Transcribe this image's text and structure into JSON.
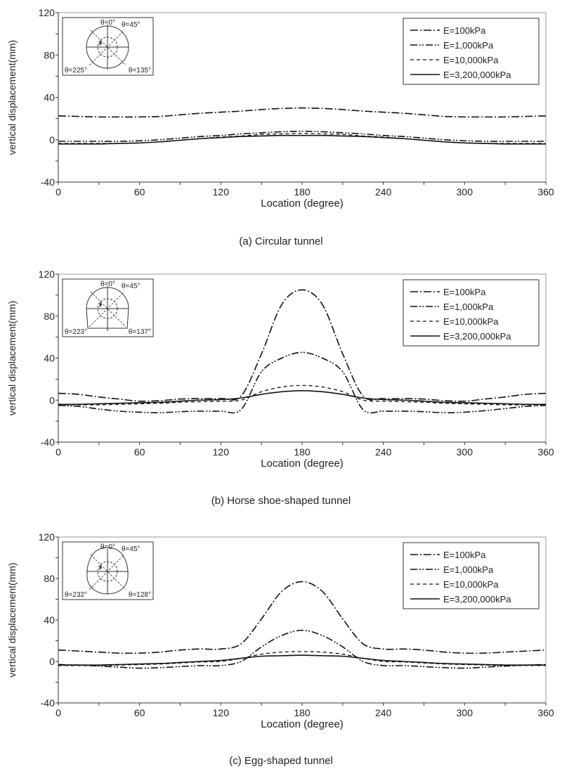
{
  "chart_data": [
    {
      "type": "line",
      "caption": "(a) Circular tunnel",
      "xlabel": "Location (degree)",
      "ylabel": "vertical displacement(mm)",
      "xlim": [
        0,
        360
      ],
      "ylim": [
        -40,
        120
      ],
      "xticks": [
        "0",
        "60",
        "120",
        "180",
        "240",
        "300",
        "360"
      ],
      "yticks": [
        "120",
        "80",
        "40",
        "0",
        "-40"
      ],
      "grid": false,
      "legend_position": "top-right",
      "inset": {
        "shape": "circle",
        "labels": [
          "θ=0°",
          "θ=45°",
          "θ=225°",
          "θ=135°"
        ]
      },
      "x": [
        0,
        15,
        30,
        45,
        60,
        75,
        90,
        105,
        120,
        135,
        150,
        165,
        180,
        195,
        210,
        225,
        240,
        255,
        270,
        285,
        300,
        315,
        330,
        345,
        360
      ],
      "series": [
        {
          "name": "E=100kPa",
          "style": "dash-dot",
          "values": [
            22.5,
            22,
            21.5,
            21.5,
            21.5,
            22,
            23.5,
            25,
            26,
            27,
            28.5,
            29.5,
            30,
            29.5,
            28.5,
            27,
            26,
            25,
            23.5,
            22,
            21.5,
            21.5,
            21.5,
            22,
            22.5
          ]
        },
        {
          "name": "E=1,000kPa",
          "style": "dash-dot-dot",
          "values": [
            -1.5,
            -1.5,
            -1.5,
            -1.5,
            -1,
            0,
            1.5,
            3,
            4,
            5.5,
            6.5,
            7.5,
            8,
            7.5,
            6.5,
            5.5,
            4,
            3,
            1.5,
            0,
            -1,
            -1.5,
            -1.5,
            -1.5,
            -1.5
          ]
        },
        {
          "name": "E=10,000kPa",
          "style": "dashed",
          "values": [
            -3.5,
            -3.5,
            -3.5,
            -3.5,
            -3,
            -2,
            -0.5,
            1,
            2.5,
            3.5,
            5,
            5.5,
            6,
            5.5,
            5,
            3.5,
            2.5,
            1,
            -0.5,
            -2,
            -3,
            -3.5,
            -3.5,
            -3.5,
            -3.5
          ]
        },
        {
          "name": "E=3,200,000kPa",
          "style": "solid",
          "values": [
            -4,
            -4,
            -4,
            -3.5,
            -3,
            -2,
            -0.5,
            1,
            2,
            3,
            3.5,
            4,
            4,
            4,
            3.5,
            3,
            2,
            1,
            -0.5,
            -2,
            -3,
            -3.5,
            -4,
            -4,
            -4
          ]
        }
      ]
    },
    {
      "type": "line",
      "caption": "(b) Horse shoe-shaped tunnel",
      "xlabel": "Location (degree)",
      "ylabel": "vertical displacement(mm)",
      "xlim": [
        0,
        360
      ],
      "ylim": [
        -40,
        120
      ],
      "xticks": [
        "0",
        "60",
        "120",
        "180",
        "240",
        "300",
        "360"
      ],
      "yticks": [
        "120",
        "80",
        "40",
        "0",
        "-40"
      ],
      "grid": false,
      "legend_position": "top-right",
      "inset": {
        "shape": "horseshoe",
        "labels": [
          "θ=0°",
          "θ=45°",
          "θ=223°",
          "θ=137°"
        ]
      },
      "x": [
        0,
        15,
        30,
        45,
        60,
        75,
        90,
        105,
        120,
        135,
        150,
        165,
        180,
        195,
        210,
        225,
        240,
        255,
        270,
        285,
        300,
        315,
        330,
        345,
        360
      ],
      "series": [
        {
          "name": "E=100kPa",
          "style": "dash-dot",
          "values": [
            6.5,
            5.5,
            3,
            1,
            -1,
            -0.5,
            1,
            1.5,
            1.5,
            4,
            44,
            91,
            105,
            91,
            44,
            4,
            1.5,
            1.5,
            1,
            -0.5,
            -1,
            1,
            3,
            5.5,
            6.5
          ]
        },
        {
          "name": "E=1,000kPa",
          "style": "dash-dot-dot",
          "values": [
            -5,
            -6,
            -8.5,
            -10.5,
            -11.5,
            -12,
            -11,
            -10.5,
            -10.5,
            -9,
            27,
            40,
            45.5,
            40,
            27,
            -9,
            -10.5,
            -10.5,
            -11,
            -12,
            -11.5,
            -10,
            -8,
            -6,
            -5
          ]
        },
        {
          "name": "E=10,000kPa",
          "style": "dashed",
          "values": [
            -4.5,
            -4.5,
            -4.5,
            -4,
            -3.5,
            -3,
            -2,
            -1.5,
            -1,
            0,
            8,
            12.5,
            14,
            12.5,
            8,
            0,
            -1,
            -1.5,
            -2,
            -3,
            -3.5,
            -4,
            -4.5,
            -4.5,
            -4.5
          ]
        },
        {
          "name": "E=3,200,000kPa",
          "style": "solid",
          "values": [
            -4,
            -4,
            -3.5,
            -3,
            -2.5,
            -2,
            -1,
            0,
            0.5,
            2,
            5.5,
            8,
            9,
            8,
            5.5,
            2,
            0.5,
            0,
            -1,
            -2,
            -2.5,
            -3,
            -3.5,
            -4,
            -4
          ]
        }
      ]
    },
    {
      "type": "line",
      "caption": "(c) Egg-shaped tunnel",
      "xlabel": "Location (degree)",
      "ylabel": "vertical displacement(mm)",
      "xlim": [
        0,
        360
      ],
      "ylim": [
        -40,
        120
      ],
      "xticks": [
        "0",
        "60",
        "120",
        "180",
        "240",
        "300",
        "360"
      ],
      "yticks": [
        "120",
        "80",
        "40",
        "0",
        "-40"
      ],
      "grid": false,
      "legend_position": "top-right",
      "inset": {
        "shape": "egg",
        "labels": [
          "θ=0°",
          "θ=45°",
          "θ=232°",
          "θ=128°"
        ]
      },
      "x": [
        0,
        15,
        30,
        45,
        60,
        75,
        90,
        105,
        120,
        135,
        150,
        165,
        180,
        195,
        210,
        225,
        240,
        255,
        270,
        285,
        300,
        315,
        330,
        345,
        360
      ],
      "series": [
        {
          "name": "E=100kPa",
          "style": "dash-dot",
          "values": [
            11,
            10,
            9,
            8,
            8,
            9,
            11,
            12,
            12,
            17,
            41,
            67.5,
            77,
            67.5,
            41,
            17,
            12,
            12,
            11,
            9,
            8,
            8,
            9,
            10,
            11
          ]
        },
        {
          "name": "E=1,000kPa",
          "style": "dash-dot-dot",
          "values": [
            -3,
            -3.5,
            -4.5,
            -5.5,
            -6.5,
            -6,
            -5,
            -4,
            -4,
            0,
            14,
            25,
            30,
            25,
            14,
            0,
            -4,
            -4,
            -5,
            -6,
            -6.5,
            -5.5,
            -4.5,
            -3.5,
            -3
          ]
        },
        {
          "name": "E=10,000kPa",
          "style": "dashed",
          "values": [
            -4,
            -4,
            -4,
            -3.5,
            -3,
            -2.5,
            -1.5,
            -0.5,
            0,
            3,
            7,
            9,
            9.5,
            9,
            7,
            3,
            0,
            -0.5,
            -1.5,
            -2.5,
            -3,
            -3.5,
            -4,
            -4,
            -4
          ]
        },
        {
          "name": "E=3,200,000kPa",
          "style": "solid",
          "values": [
            -3.5,
            -3.5,
            -3.5,
            -3,
            -2.5,
            -2,
            -1,
            0,
            1,
            3,
            5,
            5.5,
            6,
            5.5,
            5,
            3,
            1,
            0,
            -1,
            -2,
            -2.5,
            -3,
            -3.5,
            -3.5,
            -3.5
          ]
        }
      ]
    }
  ]
}
